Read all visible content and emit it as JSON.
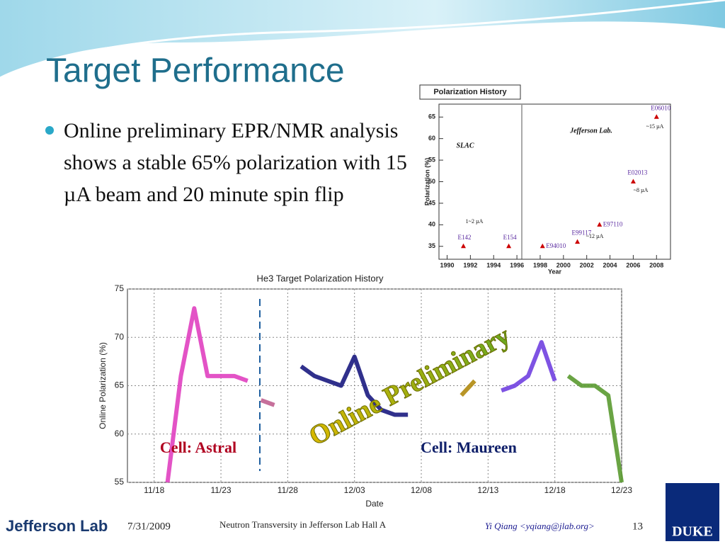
{
  "header": {
    "title": "Target Performance"
  },
  "bullet": "Online preliminary EPR/NMR analysis shows a stable 65% polarization with 15 µA beam and 20 minute spin flip",
  "chart_data": [
    {
      "type": "scatter",
      "title": "Polarization History",
      "x_label": "Year",
      "y_label": "Polarization (%)",
      "x": [
        1991.4,
        1995.3,
        1998.2,
        2001.2,
        2003.1,
        2006,
        2008
      ],
      "values": [
        35,
        35,
        35,
        36,
        40,
        50,
        65
      ],
      "point_labels": [
        "E142",
        "E154",
        "E94010",
        "E99117",
        "E97110",
        "E02013",
        "E06010"
      ],
      "color": "#cc0000",
      "label_color": "#5a2aa0",
      "annotations": [
        "SLAC",
        "Jefferson Lab.",
        "1~2 µA",
        "~12 µA",
        "~8 µA",
        "~15 µA"
      ],
      "xlim": [
        1989.3,
        2009.2
      ],
      "xticks": [
        1990,
        1992,
        1994,
        1996,
        1998,
        2000,
        2002,
        2004,
        2006,
        2008
      ],
      "ylim": [
        32,
        68
      ],
      "yticks": [
        35,
        40,
        45,
        50,
        55,
        60,
        65
      ]
    },
    {
      "type": "line",
      "title": "He3 Target Polarization History",
      "x_label": "Date",
      "y_label": "Online Polarization (%)",
      "series": [
        {
          "color": "#e040c0",
          "x": [
            "11/19",
            "11/20",
            "11/21",
            "11/22",
            "11/23",
            "11/24",
            "11/25"
          ],
          "values": [
            55,
            66,
            73,
            66,
            66,
            66,
            65.5
          ]
        },
        {
          "color": "#c06090",
          "x": [
            "11/26",
            "11/27"
          ],
          "values": [
            63.5,
            63
          ]
        },
        {
          "color": "#1a1a80",
          "x": [
            "11/29",
            "11/30",
            "12/01",
            "12/02",
            "12/03",
            "12/04",
            "12/05",
            "12/06",
            "12/07"
          ],
          "values": [
            67,
            66,
            65.5,
            65,
            68,
            64,
            62.5,
            62,
            62
          ]
        },
        {
          "color": "#b08a10",
          "x": [
            "12/11",
            "12/12"
          ],
          "values": [
            64,
            65.5
          ]
        },
        {
          "color": "#7040e0",
          "x": [
            "12/14",
            "12/15",
            "12/16",
            "12/17",
            "12/18"
          ],
          "values": [
            64.5,
            65,
            66,
            69.5,
            65.5
          ]
        },
        {
          "color": "#5a9a30",
          "x": [
            "12/19",
            "12/20",
            "12/21",
            "12/22",
            "12/23"
          ],
          "values": [
            66,
            65,
            65,
            64,
            55
          ]
        }
      ],
      "annotations": [
        "Cell: Astral",
        "Cell: Maureen",
        "Online Preliminary"
      ],
      "xlim": [
        "11/16",
        "12/23"
      ],
      "xticks": [
        "11/18",
        "11/23",
        "11/28",
        "12/03",
        "12/08",
        "12/13",
        "12/18",
        "12/23"
      ],
      "ylim": [
        55,
        75
      ],
      "yticks": [
        55,
        60,
        65,
        70,
        75
      ],
      "grid": true
    }
  ],
  "footer": {
    "logo_left": "Jefferson Lab",
    "date": "7/31/2009",
    "talk": "Neutron Transversity in Jefferson Lab Hall A",
    "author": "Yi Qiang <yqiang@jlab.org>",
    "page": "13",
    "logo_right": "DUKE"
  }
}
